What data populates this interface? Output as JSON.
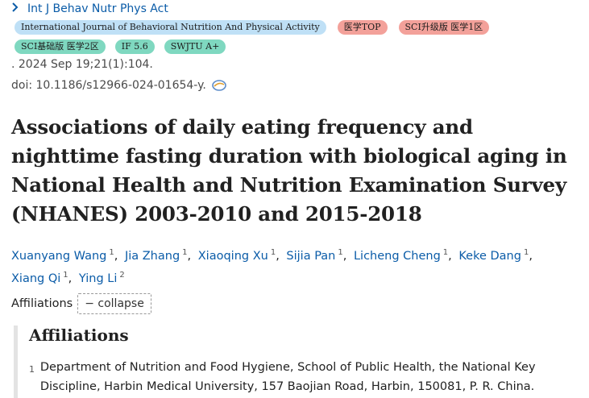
{
  "journal": {
    "abbrev": "Int J Behav Nutr Phys Act"
  },
  "tags": [
    {
      "label": "International Journal of Behavioral Nutrition And Physical Activity",
      "color": "#bfe0f6"
    },
    {
      "label": "医学TOP",
      "color": "#f3a19a"
    },
    {
      "label": "SCI升级版 医学1区",
      "color": "#f3a19a"
    },
    {
      "label": "SCI基础版 医学2区",
      "color": "#7fd8c0"
    },
    {
      "label": "IF 5.6",
      "color": "#7fd8c0"
    },
    {
      "label": "SWJTU A+",
      "color": "#7fd8c0"
    }
  ],
  "citation": ". 2024 Sep 19;21(1):104.",
  "doi": "doi: 10.1186/s12966-024-01654-y.",
  "title": "Associations of daily eating frequency and nighttime fasting duration with biological aging in National Health and Nutrition Examination Survey (NHANES) 2003-2010 and 2015-2018",
  "authors": [
    {
      "name": "Xuanyang Wang",
      "aff": "1"
    },
    {
      "name": "Jia Zhang",
      "aff": "1"
    },
    {
      "name": "Xiaoqing Xu",
      "aff": "1"
    },
    {
      "name": "Sijia Pan",
      "aff": "1"
    },
    {
      "name": "Licheng Cheng",
      "aff": "1"
    },
    {
      "name": "Keke Dang",
      "aff": "1"
    },
    {
      "name": "Xiang Qi",
      "aff": "1"
    },
    {
      "name": "Ying Li",
      "aff": "2"
    }
  ],
  "affiliations_toggle": {
    "label": "Affiliations",
    "button": "− collapse"
  },
  "affiliations": {
    "heading": "Affiliations",
    "items": [
      {
        "num": "1",
        "text": "Department of Nutrition and Food Hygiene, School of Public Health, the National Key Discipline, Harbin Medical University, 157 Baojian Road, Harbin, 150081, P. R. China."
      }
    ]
  }
}
